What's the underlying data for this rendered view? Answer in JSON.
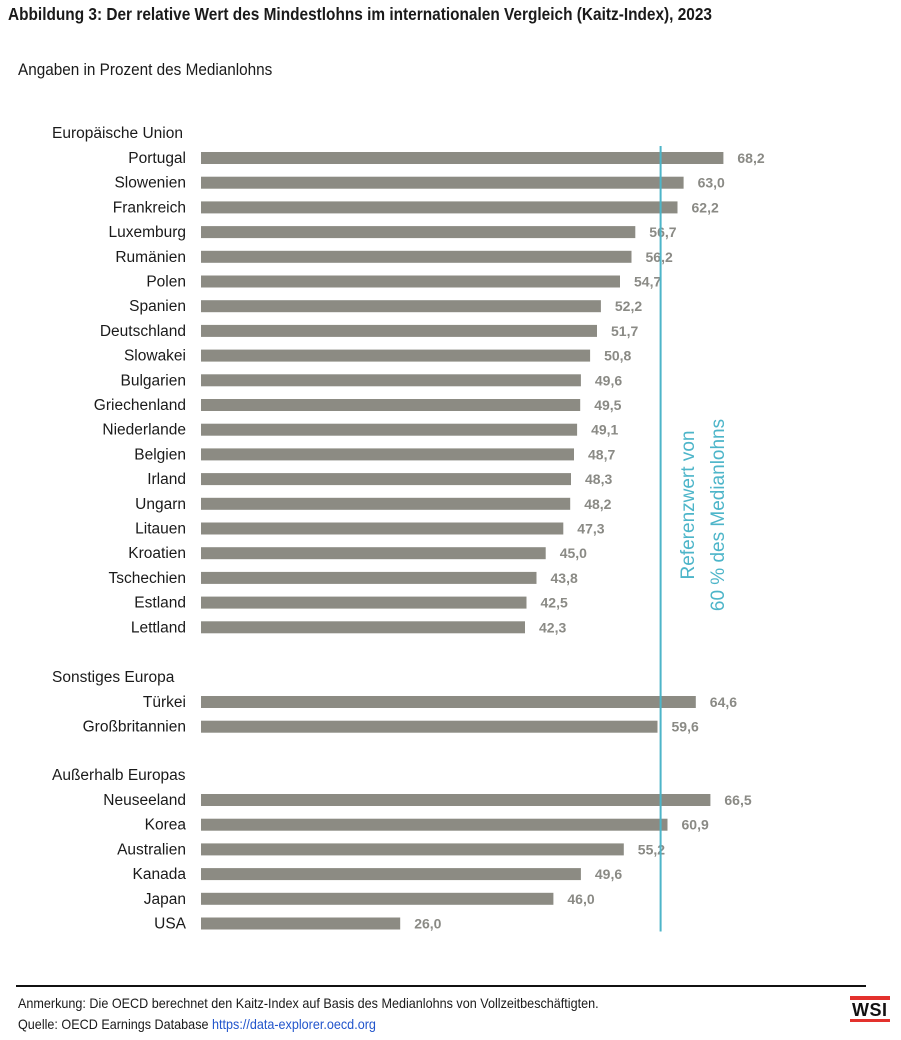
{
  "title": "Abbildung 3: Der relative Wert des Mindestlohns im internationalen Vergleich (Kaitz-Index), 2023",
  "subtitle": "Angaben in Prozent des Medianlohns",
  "chart_data": {
    "type": "bar",
    "orientation": "horizontal",
    "unit": "Prozent des Medianlohns",
    "groups": [
      {
        "name": "Europäische Union",
        "categories": [
          "Portugal",
          "Slowenien",
          "Frankreich",
          "Luxemburg",
          "Rumänien",
          "Polen",
          "Spanien",
          "Deutschland",
          "Slowakei",
          "Bulgarien",
          "Griechenland",
          "Niederlande",
          "Belgien",
          "Irland",
          "Ungarn",
          "Litauen",
          "Kroatien",
          "Tschechien",
          "Estland",
          "Lettland"
        ],
        "values": [
          68.2,
          63.0,
          62.2,
          56.7,
          56.2,
          54.7,
          52.2,
          51.7,
          50.8,
          49.6,
          49.5,
          49.1,
          48.7,
          48.3,
          48.2,
          47.3,
          45.0,
          43.8,
          42.5,
          42.3
        ],
        "labels": [
          "68,2",
          "63,0",
          "62,2",
          "56,7",
          "56,2",
          "54,7",
          "52,2",
          "51,7",
          "50,8",
          "49,6",
          "49,5",
          "49,1",
          "48,7",
          "48,3",
          "48,2",
          "47,3",
          "45,0",
          "43,8",
          "42,5",
          "42,3"
        ]
      },
      {
        "name": "Sonstiges Europa",
        "categories": [
          "Türkei",
          "Großbritannien"
        ],
        "values": [
          64.6,
          59.6
        ],
        "labels": [
          "64,6",
          "59,6"
        ]
      },
      {
        "name": "Außerhalb Europas",
        "categories": [
          "Neuseeland",
          "Korea",
          "Australien",
          "Kanada",
          "Japan",
          "USA"
        ],
        "values": [
          66.5,
          60.9,
          55.2,
          49.6,
          46.0,
          26.0
        ],
        "labels": [
          "66,5",
          "60,9",
          "55,2",
          "49,6",
          "46,0",
          "26,0"
        ]
      }
    ],
    "reference_line": {
      "value": 60,
      "label_line1": "Referenzwert von",
      "label_line2": "60 % des Medianlohns",
      "color": "#4db5c9"
    },
    "bar_color": "#8c8b83",
    "value_label_color": "#8a8a85"
  },
  "footer": {
    "note": "Anmerkung: Die OECD berechnet den Kaitz-Index auf Basis des Medianlohns von Vollzeitbeschäftigten.",
    "source_prefix": "Quelle: OECD Earnings Database ",
    "source_link": "https://data-explorer.oecd.org",
    "logo": "WSI",
    "logo_accent": "#e3312d"
  }
}
